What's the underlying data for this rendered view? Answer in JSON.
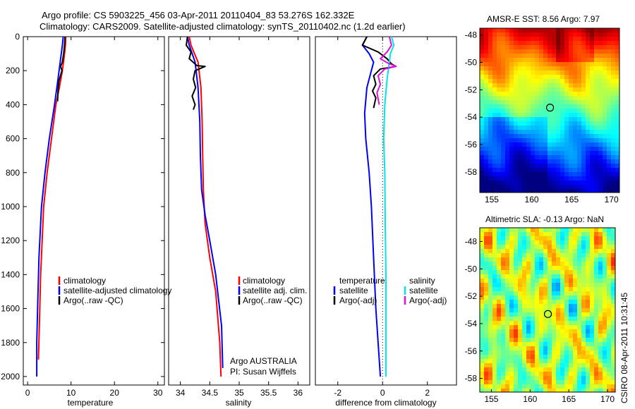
{
  "page": {
    "title_line1": "Argo profile: CS 5903225_456 03-Apr-2011 20110404_83 53.276S 162.332E",
    "title_line2": "Climatology: CARS2009. Satellite-adjusted climatology: synTS_20110402.nc (1.2d earlier)",
    "side_credit": "CSIRO 08-Apr-2011 10:31:45",
    "argo_note_line1": "Argo AUSTRALIA",
    "argo_note_line2": "PI: Susan Wijffels"
  },
  "colors": {
    "climatology": "#ff0000",
    "satellite": "#0000ff",
    "argo": "#000000",
    "salinity_satellite": "#00e5ee",
    "salinity_argo": "#e010e0",
    "axis": "#000000"
  },
  "chart_data": [
    {
      "id": "temperature",
      "type": "line",
      "xlabel": "temperature",
      "ylabel": "",
      "xlim": [
        -1,
        31.5
      ],
      "ylim": [
        2050,
        0
      ],
      "xticks": [
        0,
        10,
        20,
        30
      ],
      "yticks": [
        0,
        200,
        400,
        600,
        800,
        1000,
        1200,
        1400,
        1600,
        1800,
        2000
      ],
      "legend": [
        "climatology",
        "satellite-adjusted climatology",
        "Argo(..raw -QC)"
      ],
      "legend_position": "bottom-right",
      "series": [
        {
          "name": "climatology",
          "color": "#ff0000",
          "x": [
            8.8,
            8.7,
            8.5,
            8.0,
            7.3,
            6.5,
            5.5,
            4.5,
            3.7,
            3.0,
            2.7,
            2.5
          ],
          "y": [
            0,
            50,
            100,
            200,
            300,
            400,
            600,
            800,
            1000,
            1400,
            1700,
            1900
          ]
        },
        {
          "name": "satellite-adjusted climatology",
          "color": "#0000ff",
          "x": [
            8.2,
            8.0,
            7.5,
            7.0,
            6.2,
            5.0,
            4.0,
            3.2,
            2.6,
            2.3,
            2.1,
            2.1
          ],
          "y": [
            0,
            50,
            150,
            250,
            400,
            600,
            800,
            1000,
            1300,
            1600,
            1800,
            2000
          ]
        },
        {
          "name": "Argo(..raw -QC)",
          "color": "#000000",
          "x": [
            8.6,
            8.5,
            8.3,
            8.0,
            7.6,
            7.9,
            7.2,
            7.0,
            6.9
          ],
          "y": [
            0,
            50,
            100,
            150,
            175,
            200,
            260,
            320,
            380
          ]
        }
      ]
    },
    {
      "id": "salinity",
      "type": "line",
      "xlabel": "salinity",
      "ylabel": "",
      "xlim": [
        33.8,
        36.2
      ],
      "ylim": [
        2050,
        0
      ],
      "xticks": [
        34,
        34.5,
        35,
        35.5,
        36
      ],
      "xtick_labels": [
        "34",
        "34.5",
        "35",
        "35.5",
        "36"
      ],
      "legend": [
        "climatology",
        "satellite adj. clim.",
        "Argo(..raw -QC)"
      ],
      "legend_position": "bottom-right",
      "series": [
        {
          "name": "climatology",
          "color": "#ff0000",
          "x": [
            34.15,
            34.18,
            34.3,
            34.35,
            34.37,
            34.38,
            34.39,
            34.42,
            34.5,
            34.6,
            34.67,
            34.69
          ],
          "y": [
            0,
            50,
            150,
            300,
            500,
            700,
            900,
            1100,
            1300,
            1500,
            1800,
            2000
          ]
        },
        {
          "name": "satellite adj. clim.",
          "color": "#0000ff",
          "x": [
            34.12,
            34.15,
            34.25,
            34.3,
            34.33,
            34.34,
            34.36,
            34.42,
            34.5,
            34.6,
            34.7,
            34.72
          ],
          "y": [
            0,
            50,
            150,
            300,
            500,
            700,
            900,
            1050,
            1200,
            1400,
            1700,
            1950
          ]
        },
        {
          "name": "Argo(..raw -QC)",
          "color": "#000000",
          "x": [
            34.12,
            34.1,
            34.18,
            34.15,
            34.25,
            34.28,
            34.42,
            34.25,
            34.22,
            34.26,
            34.2,
            34.25,
            34.22
          ],
          "y": [
            0,
            50,
            90,
            130,
            160,
            170,
            175,
            200,
            250,
            300,
            350,
            400,
            430
          ]
        }
      ]
    },
    {
      "id": "difference",
      "type": "line",
      "xlabel": "difference from climatology",
      "ylabel": "",
      "xlim": [
        -3,
        3.3
      ],
      "ylim": [
        2050,
        0
      ],
      "xticks": [
        -2,
        0,
        2
      ],
      "legend": [
        "temperature",
        "satellite",
        "Argo(-adj)",
        "salinity",
        "satellite",
        "Argo(-adj)"
      ],
      "legend_position": "bottom",
      "series": [
        {
          "name": "satellite",
          "color": "#0000ff",
          "x": [
            -0.7,
            -0.9,
            -0.6,
            -0.4,
            -0.7,
            -0.8,
            -0.75,
            -0.6,
            -0.5,
            -0.4,
            -0.3,
            -0.1
          ],
          "y": [
            0,
            50,
            100,
            150,
            300,
            450,
            600,
            800,
            1000,
            1300,
            1600,
            2000
          ]
        },
        {
          "name": "Argo(-adj)",
          "color": "#000000",
          "x": [
            -0.7,
            -0.9,
            -0.2,
            0.2,
            0.4,
            0.6,
            -0.1,
            -0.4,
            -0.3,
            -0.45,
            -0.3,
            -0.4
          ],
          "y": [
            0,
            50,
            90,
            130,
            160,
            175,
            190,
            230,
            280,
            320,
            360,
            420
          ]
        },
        {
          "name": "satellite",
          "color": "#00e5ee",
          "x": [
            0.4,
            0.5,
            0.35,
            0.3,
            0.2,
            0.1,
            0.05,
            0.1,
            0.12,
            0.15,
            0.15,
            0.15
          ],
          "y": [
            0,
            50,
            100,
            150,
            250,
            400,
            600,
            800,
            1100,
            1400,
            1700,
            2000
          ]
        },
        {
          "name": "Argo(-adj)",
          "color": "#e010e0",
          "x": [
            0.3,
            0.4,
            0.2,
            -0.1,
            0.3,
            0.6,
            0.1,
            -0.2,
            -0.1,
            -0.25,
            -0.15
          ],
          "y": [
            0,
            50,
            90,
            130,
            160,
            175,
            190,
            230,
            280,
            330,
            400
          ]
        }
      ]
    },
    {
      "id": "sst-map",
      "type": "heatmap",
      "title": "AMSR-E SST: 8.56 Argo: 7.97",
      "xlim": [
        153.5,
        171
      ],
      "ylim": [
        -59.5,
        -47.5
      ],
      "xticks": [
        155,
        160,
        165,
        170
      ],
      "yticks": [
        -48,
        -50,
        -52,
        -54,
        -56,
        -58
      ],
      "marker": {
        "lon": 162.3,
        "lat": -53.3
      }
    },
    {
      "id": "sla-map",
      "type": "heatmap",
      "title": "Altimetric SLA: -0.13 Argo: NaN",
      "xlim": [
        153.5,
        171
      ],
      "ylim": [
        -59,
        -47
      ],
      "xticks": [
        155,
        160,
        165,
        170
      ],
      "yticks": [
        -48,
        -50,
        -52,
        -54,
        -56,
        -58
      ],
      "marker": {
        "lon": 162.3,
        "lat": -53.3
      }
    }
  ]
}
